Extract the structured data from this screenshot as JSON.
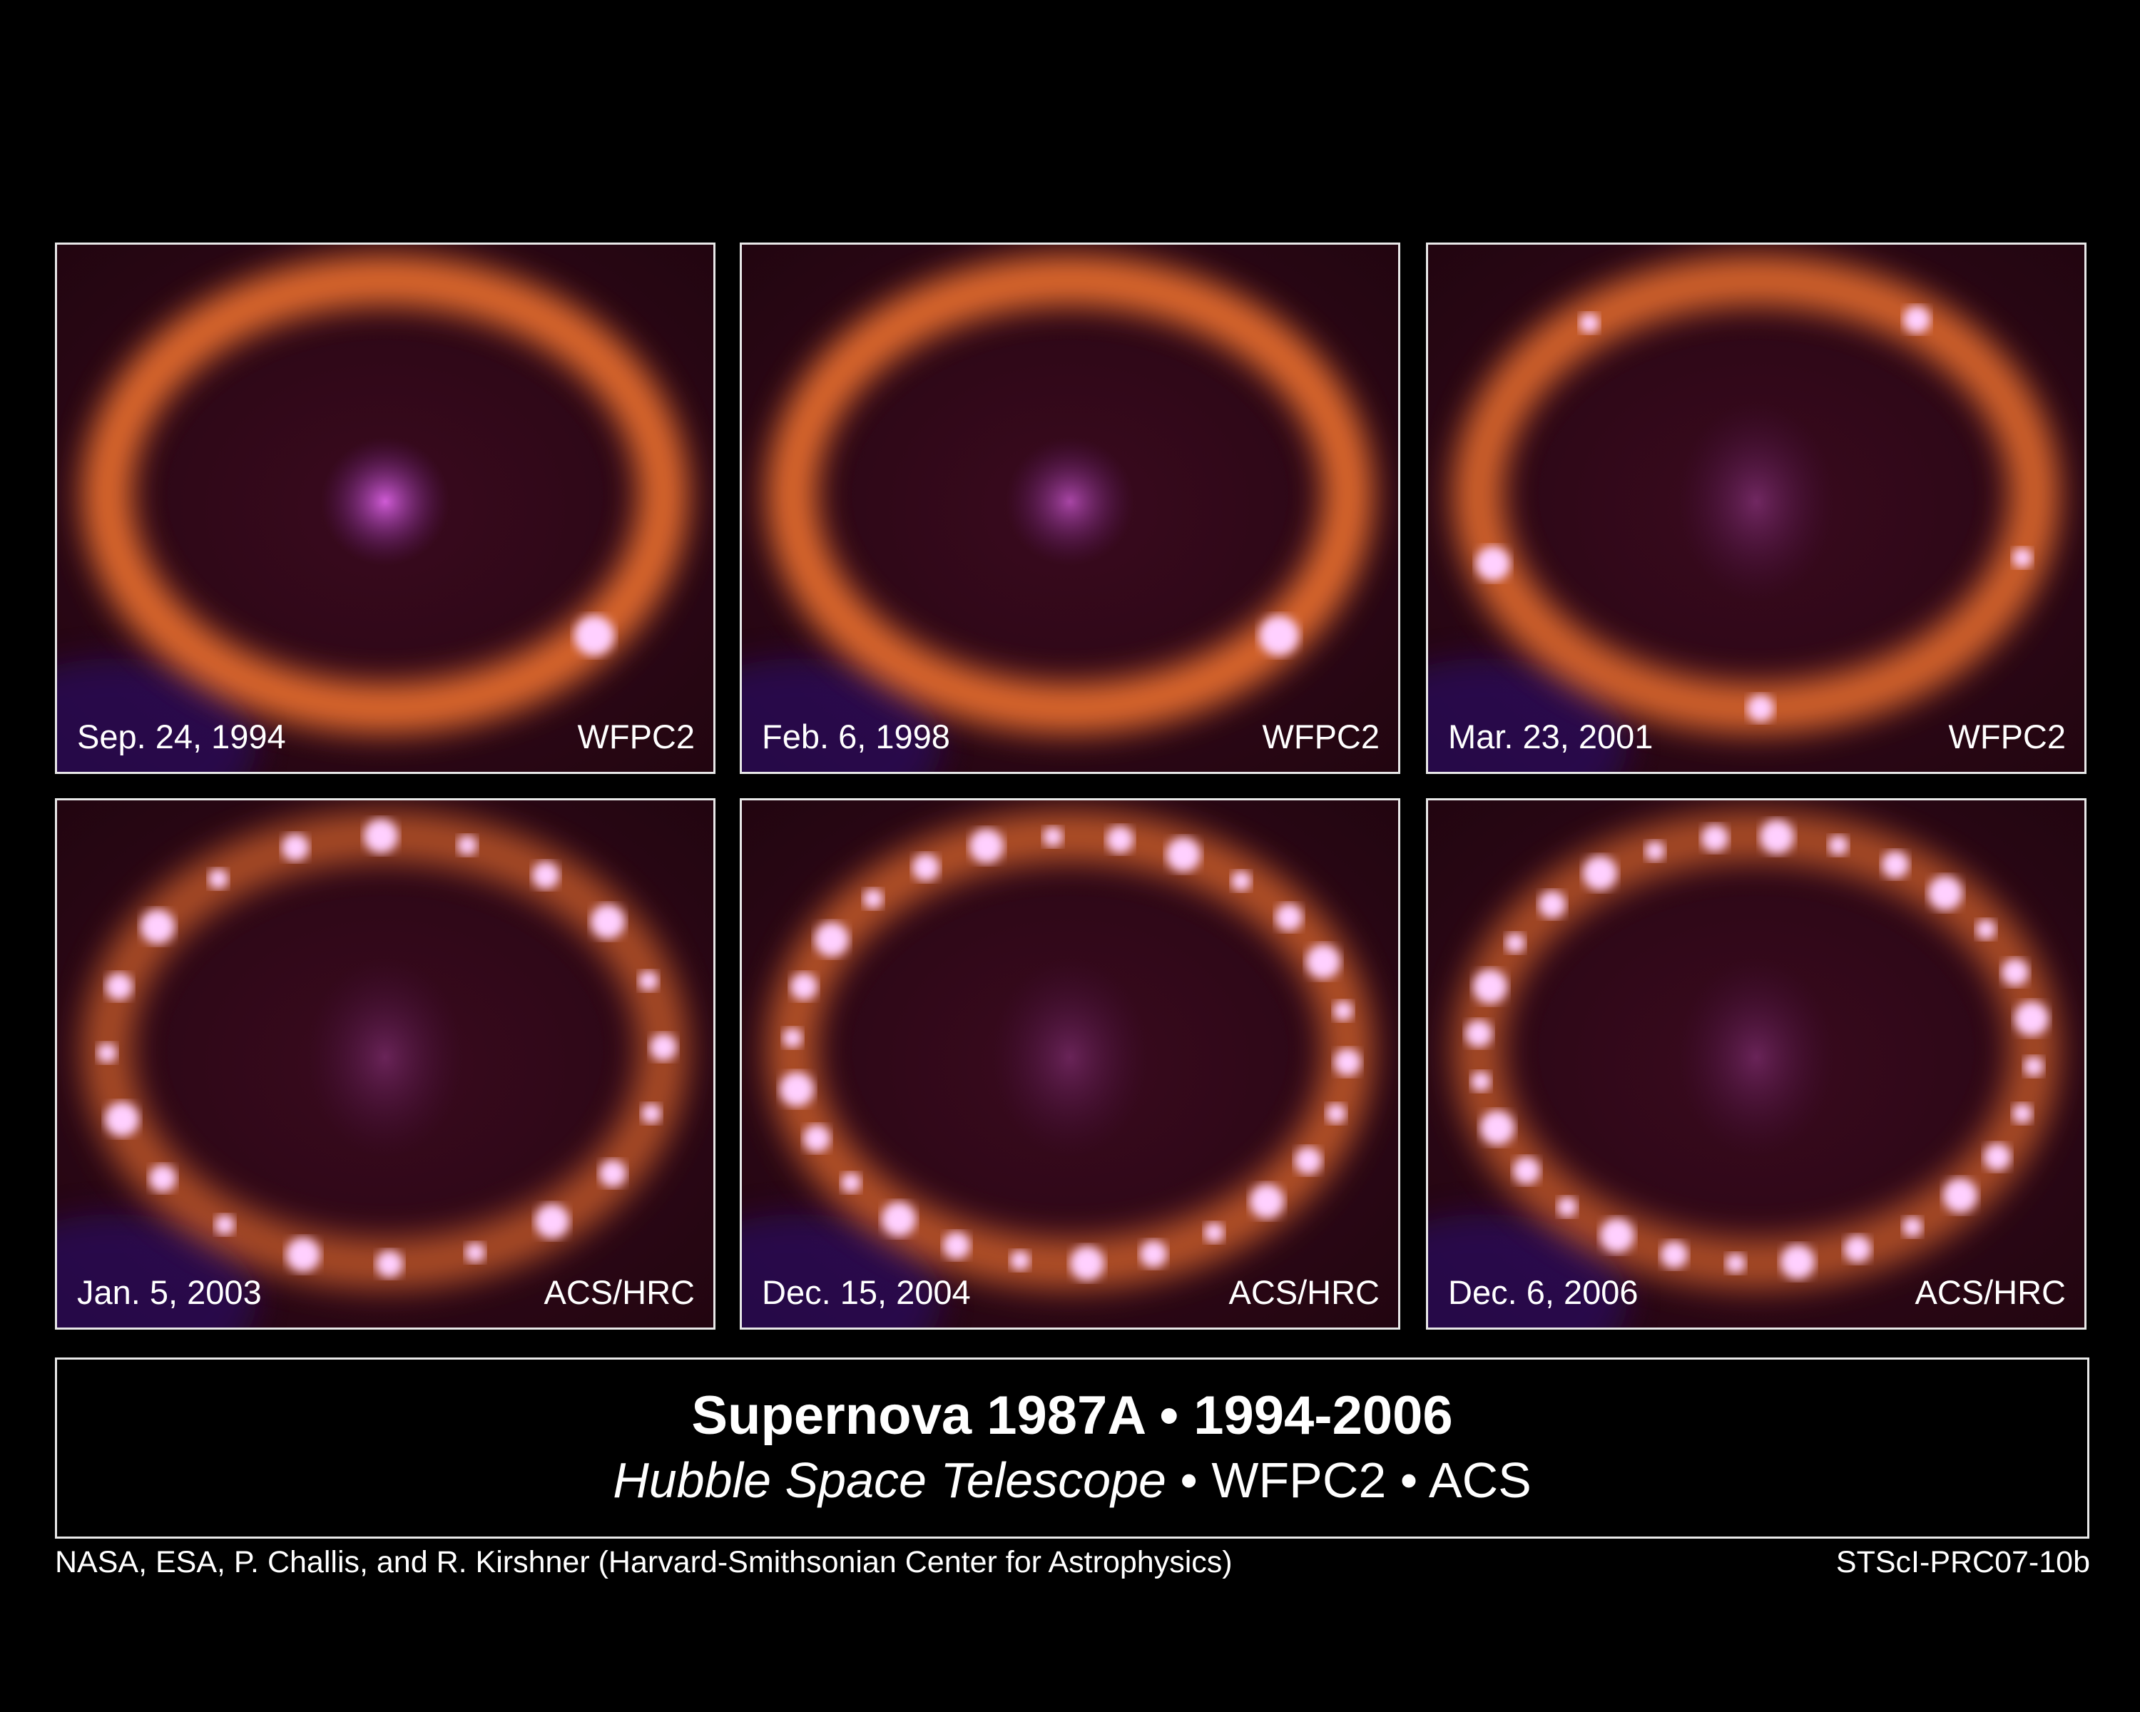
{
  "panels": [
    {
      "date": "Sep. 24, 1994",
      "instrument": "WFPC2"
    },
    {
      "date": "Feb. 6, 1998",
      "instrument": "WFPC2"
    },
    {
      "date": "Mar. 23, 2001",
      "instrument": "WFPC2"
    },
    {
      "date": "Jan. 5, 2003",
      "instrument": "ACS/HRC"
    },
    {
      "date": "Dec. 15, 2004",
      "instrument": "ACS/HRC"
    },
    {
      "date": "Dec. 6, 2006",
      "instrument": "ACS/HRC"
    }
  ],
  "caption": {
    "title": "Supernova 1987A • 1994-2006",
    "subtitle_italic": "Hubble Space Telescope",
    "subtitle_rest": " • WFPC2 • ACS"
  },
  "credit": "NASA, ESA, P. Challis, and R. Kirshner (Harvard-Smithsonian Center for Astrophysics)",
  "release_id": "STScI-PRC07-10b",
  "colors": {
    "ring": "#ff7a30",
    "hotspot": "#ffd0ff",
    "ejecta": "#d860e0",
    "background": "#000000"
  }
}
